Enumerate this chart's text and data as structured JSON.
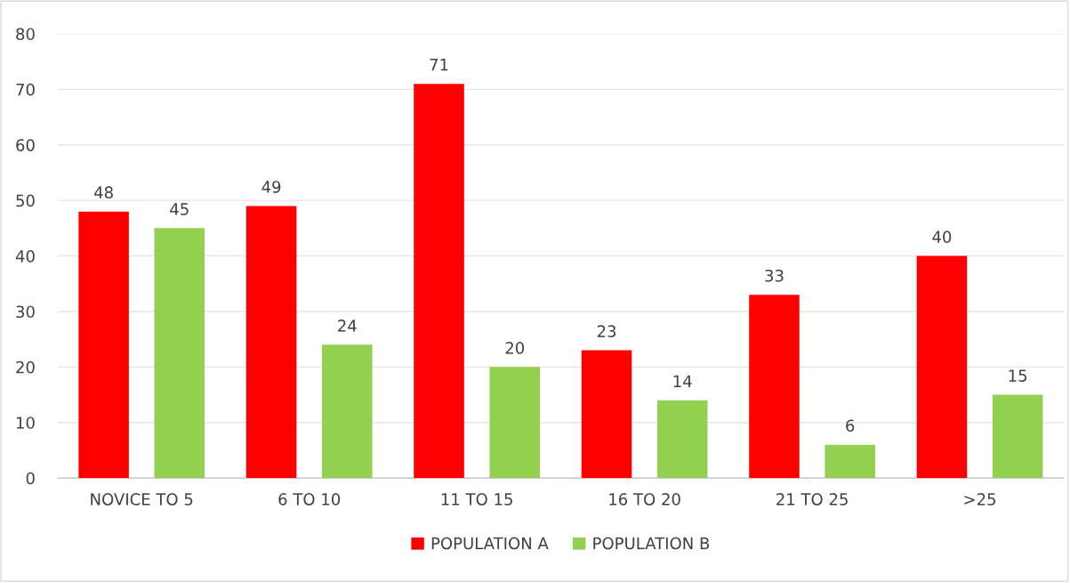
{
  "chart_data": {
    "type": "bar",
    "categories": [
      "NOVICE TO 5",
      "6 TO 10",
      "11 TO 15",
      "16 TO 20",
      "21 TO 25",
      ">25"
    ],
    "series": [
      {
        "name": "POPULATION A",
        "color": "#ff0000",
        "values": [
          48,
          49,
          71,
          23,
          33,
          40
        ]
      },
      {
        "name": "POPULATION B",
        "color": "#92d050",
        "values": [
          45,
          24,
          20,
          14,
          6,
          15
        ]
      }
    ],
    "ylim": [
      0,
      80
    ],
    "yticks": [
      0,
      10,
      20,
      30,
      40,
      50,
      60,
      70,
      80
    ],
    "grid": "y",
    "legend": "bottom",
    "data_labels": true
  }
}
